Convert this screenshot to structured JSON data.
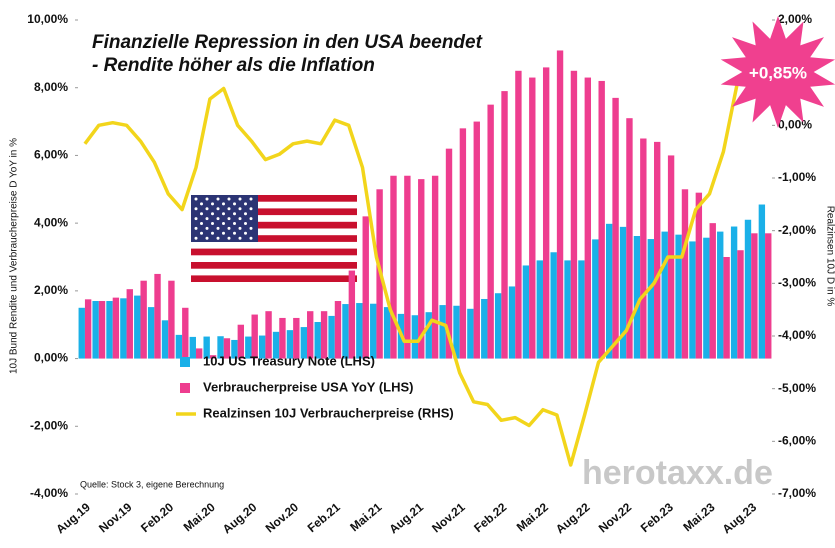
{
  "chart_data": {
    "type": "bar_line",
    "title": "Finanzielle Repression in den USA beendet",
    "subtitle": "- Rendite höher als die Inflation",
    "ylabel": "10J Bund Rendite und Verbraucherpreise D YoY in %",
    "y2label": "Realzinsen 10J D in %",
    "source": "Quelle: Stock 3, eigene Berechnung",
    "watermark": "herotaxx.de",
    "annotation": "+0,85%",
    "categories": [
      "Aug.19",
      null,
      null,
      "Nov.19",
      null,
      null,
      "Feb.20",
      null,
      null,
      "Mai.20",
      null,
      null,
      "Aug.20",
      null,
      null,
      "Nov.20",
      null,
      null,
      "Feb.21",
      null,
      null,
      "Mai.21",
      null,
      null,
      "Aug.21",
      null,
      null,
      "Nov.21",
      null,
      null,
      "Feb.22",
      null,
      null,
      "Mai.22",
      null,
      null,
      "Aug.22",
      null,
      null,
      "Nov.22",
      null,
      null,
      "Feb.23",
      null,
      null,
      "Mai.23",
      null,
      null,
      "Aug.23",
      null
    ],
    "series": [
      {
        "name": "10J US Treasury Note (LHS)",
        "color": "#1ab0e8",
        "kind": "bar",
        "values": [
          1.5,
          1.7,
          1.7,
          1.78,
          1.86,
          1.52,
          1.13,
          0.7,
          0.64,
          0.65,
          0.66,
          0.55,
          0.65,
          0.68,
          0.79,
          0.84,
          0.93,
          1.08,
          1.26,
          1.61,
          1.64,
          1.62,
          1.52,
          1.32,
          1.28,
          1.37,
          1.58,
          1.56,
          1.47,
          1.76,
          1.93,
          2.13,
          2.75,
          2.9,
          3.14,
          2.9,
          2.9,
          3.52,
          3.98,
          3.89,
          3.62,
          3.53,
          3.75,
          3.66,
          3.46,
          3.57,
          3.75,
          3.9,
          4.1,
          4.55
        ]
      },
      {
        "name": "Verbraucherpreise USA YoY (LHS)",
        "color": "#ee3d8f",
        "kind": "bar",
        "values": [
          1.75,
          1.7,
          1.8,
          2.05,
          2.3,
          2.5,
          2.3,
          1.5,
          0.3,
          0.1,
          0.6,
          1.0,
          1.3,
          1.4,
          1.2,
          1.2,
          1.4,
          1.4,
          1.7,
          2.6,
          4.2,
          5.0,
          5.4,
          5.4,
          5.3,
          5.4,
          6.2,
          6.8,
          7.0,
          7.5,
          7.9,
          8.5,
          8.3,
          8.6,
          9.1,
          8.5,
          8.3,
          8.2,
          7.7,
          7.1,
          6.5,
          6.4,
          6.0,
          5.0,
          4.9,
          4.0,
          3.0,
          3.2,
          3.7,
          3.7
        ]
      },
      {
        "name": "Realzinsen 10J Verbraucherpreise (RHS)",
        "color": "#f2d51b",
        "kind": "line",
        "axis": "y2",
        "values": [
          -0.35,
          0.0,
          0.05,
          0.0,
          -0.3,
          -0.7,
          -1.3,
          -1.6,
          -0.8,
          0.5,
          0.7,
          0.0,
          -0.3,
          -0.65,
          -0.55,
          -0.35,
          -0.3,
          -0.35,
          0.1,
          0.0,
          -0.8,
          -2.5,
          -3.5,
          -4.1,
          -4.1,
          -3.7,
          -3.8,
          -4.7,
          -5.25,
          -5.3,
          -5.6,
          -5.55,
          -5.7,
          -5.4,
          -5.5,
          -6.45,
          -5.5,
          -4.5,
          -4.2,
          -3.9,
          -3.3,
          -3.0,
          -2.5,
          -2.5,
          -1.6,
          -1.3,
          -0.5,
          0.8,
          0.85,
          0.85
        ]
      }
    ],
    "ylim": [
      -4,
      10
    ],
    "yticks": [
      {
        "value": -4,
        "label": "-4,00%"
      },
      {
        "value": -2,
        "label": "-2,00%"
      },
      {
        "value": 0,
        "label": "0,00%"
      },
      {
        "value": 2,
        "label": "2,00%"
      },
      {
        "value": 4,
        "label": "4,00%"
      },
      {
        "value": 6,
        "label": "6,00%"
      },
      {
        "value": 8,
        "label": "8,00%"
      },
      {
        "value": 10,
        "label": "10,00%"
      }
    ],
    "y2lim": [
      -7,
      2
    ],
    "y2ticks": [
      {
        "value": -7,
        "label": "-7,00%"
      },
      {
        "value": -6,
        "label": "-6,00%"
      },
      {
        "value": -5,
        "label": "-5,00%"
      },
      {
        "value": -4,
        "label": "-4,00%"
      },
      {
        "value": -3,
        "label": "-3,00%"
      },
      {
        "value": -2,
        "label": "-2,00%"
      },
      {
        "value": -1,
        "label": "-1,00%"
      },
      {
        "value": 0,
        "label": "0,00%"
      },
      {
        "value": 1,
        "label": "1,00%"
      },
      {
        "value": 2,
        "label": "2,00%"
      }
    ]
  }
}
